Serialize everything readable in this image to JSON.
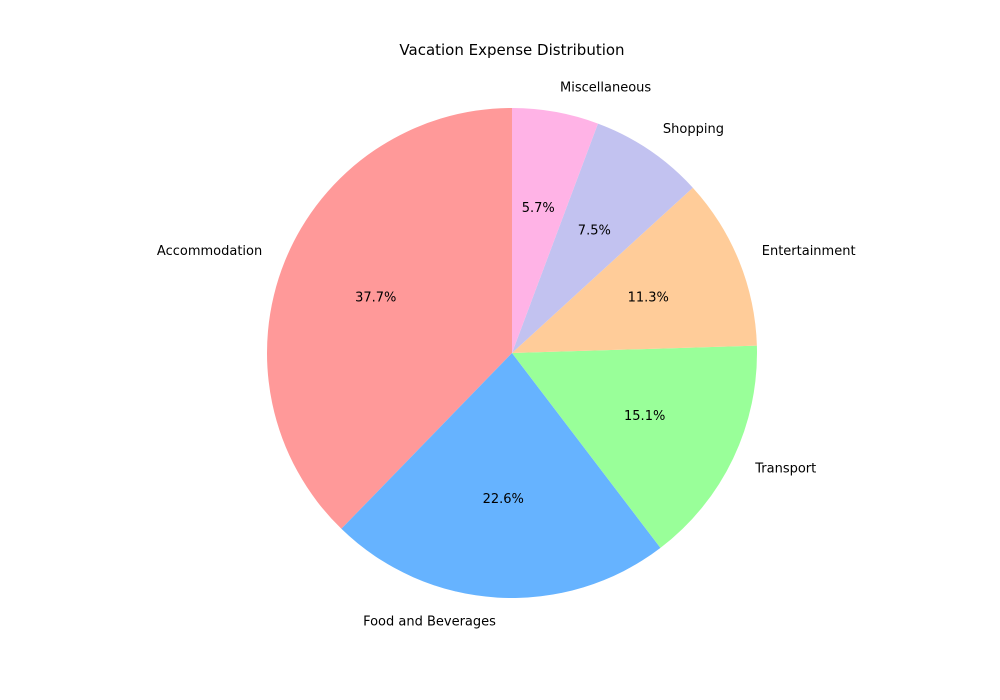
{
  "chart_data": {
    "type": "pie",
    "title": "Vacation Expense Distribution",
    "start_angle_deg": 90,
    "direction": "counterclockwise",
    "slices": [
      {
        "label": "Accommodation",
        "percent": 37.7,
        "percent_label": "37.7%",
        "color": "#ff9999"
      },
      {
        "label": "Food and Beverages",
        "percent": 22.6,
        "percent_label": "22.6%",
        "color": "#66b3ff"
      },
      {
        "label": "Transport",
        "percent": 15.1,
        "percent_label": "15.1%",
        "color": "#99ff99"
      },
      {
        "label": "Entertainment",
        "percent": 11.3,
        "percent_label": "11.3%",
        "color": "#ffcc99"
      },
      {
        "label": "Shopping",
        "percent": 7.5,
        "percent_label": "7.5%",
        "color": "#c2c2f0"
      },
      {
        "label": "Miscellaneous",
        "percent": 5.7,
        "percent_label": "5.7%",
        "color": "#ffb3e6"
      }
    ]
  }
}
